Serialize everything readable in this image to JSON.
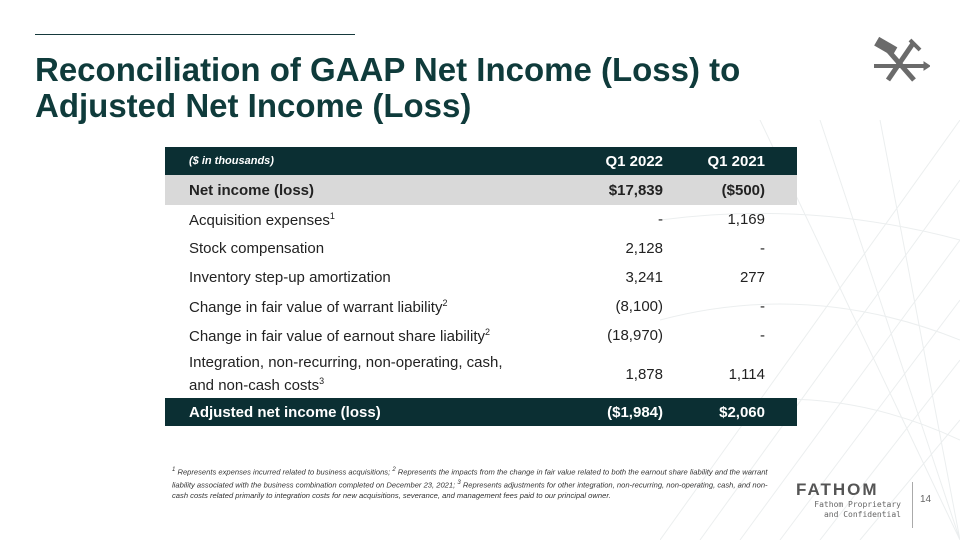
{
  "title_line1": "Reconciliation of GAAP Net Income (Loss) to",
  "title_line2": "Adjusted Net Income (Loss)",
  "table": {
    "header": {
      "label": "($ in thousands)",
      "col1": "Q1 2022",
      "col2": "Q1 2021"
    },
    "net_income": {
      "label": "Net income (loss)",
      "col1": "$17,839",
      "col2": "($500)"
    },
    "rows": [
      {
        "label": "Acquisition expenses",
        "sup": "1",
        "col1": "-",
        "col2": "1,169"
      },
      {
        "label": "Stock compensation",
        "sup": "",
        "col1": "2,128",
        "col2": "-"
      },
      {
        "label": "Inventory step-up amortization",
        "sup": "",
        "col1": "3,241",
        "col2": "277"
      },
      {
        "label": "Change in fair value of warrant liability",
        "sup": "2",
        "col1": "(8,100)",
        "col2": "-"
      },
      {
        "label": "Change in fair value of earnout share liability",
        "sup": "2",
        "col1": "(18,970)",
        "col2": "-"
      },
      {
        "label_line1": "Integration, non-recurring, non-operating, cash,",
        "label_line2": "and non-cash costs",
        "sup": "3",
        "col1": "1,878",
        "col2": "1,114"
      }
    ],
    "total": {
      "label": "Adjusted net income (loss)",
      "col1": "($1,984)",
      "col2": "$2,060"
    }
  },
  "footnote": {
    "s1": "1",
    "t1": " Represents expenses incurred related to business acquisitions; ",
    "s2": "2",
    "t2": " Represents the impacts from the change in fair value related to both the earnout share liability and the warrant liability associated with the business combination completed on December 23, 2021; ",
    "s3": "3",
    "t3": " Represents adjustments for other integration, non-recurring, non-operating, cash, and non-cash costs related primarily to integration costs for new acquisitions, severance, and management fees paid to our principal owner."
  },
  "brand": "FATHOM",
  "confidential_line1": "Fathom Proprietary",
  "confidential_line2": "and Confidential",
  "page_number": "14",
  "colors": {
    "header_bg": "#0b2f33",
    "title": "#0f3b3b",
    "highlight_row": "#d9d9d9"
  }
}
